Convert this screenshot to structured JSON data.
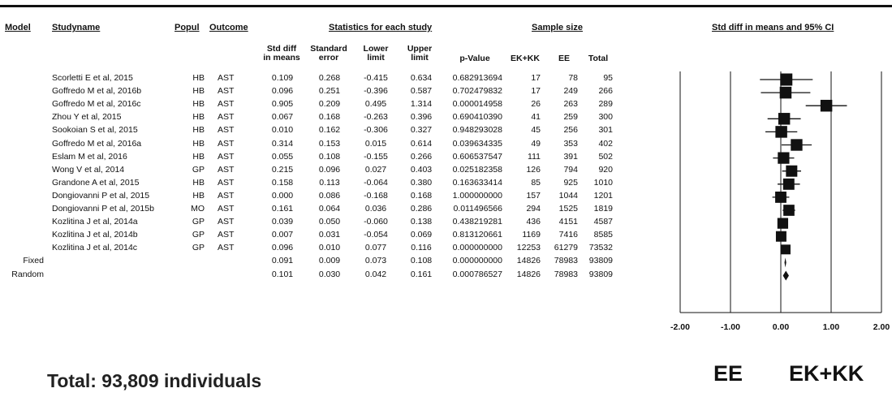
{
  "headers": {
    "model": "Model",
    "study_name": "Studyname",
    "population": "Popul",
    "outcome": "Outcome",
    "statistics_group": "Statistics for each study",
    "sample_group": "Sample size",
    "plot_group": "Std diff in means and 95% CI",
    "std_diff_line1": "Std diff",
    "std_diff_line2": "in means",
    "std_error_line1": "Standard",
    "std_error_line2": "error",
    "lower_line1": "Lower",
    "lower_line2": "limit",
    "upper_line1": "Upper",
    "upper_line2": "limit",
    "p_value": "p-Value",
    "ekkk": "EK+KK",
    "ee": "EE",
    "total": "Total"
  },
  "rows": [
    {
      "model": "",
      "study": "Scorletti E et al, 2015",
      "pop": "HB",
      "outcome": "AST",
      "smd": "0.109",
      "se": "0.268",
      "lower": "-0.415",
      "upper": "0.634",
      "p": "0.682913694",
      "ekkk": "17",
      "ee": "78",
      "total": "95"
    },
    {
      "model": "",
      "study": "Goffredo M et al, 2016b",
      "pop": "HB",
      "outcome": "AST",
      "smd": "0.096",
      "se": "0.251",
      "lower": "-0.396",
      "upper": "0.587",
      "p": "0.702479832",
      "ekkk": "17",
      "ee": "249",
      "total": "266"
    },
    {
      "model": "",
      "study": "Goffredo M et al, 2016c",
      "pop": "HB",
      "outcome": "AST",
      "smd": "0.905",
      "se": "0.209",
      "lower": "0.495",
      "upper": "1.314",
      "p": "0.000014958",
      "ekkk": "26",
      "ee": "263",
      "total": "289"
    },
    {
      "model": "",
      "study": "Zhou Y et al, 2015",
      "pop": "HB",
      "outcome": "AST",
      "smd": "0.067",
      "se": "0.168",
      "lower": "-0.263",
      "upper": "0.396",
      "p": "0.690410390",
      "ekkk": "41",
      "ee": "259",
      "total": "300"
    },
    {
      "model": "",
      "study": "Sookoian S et al, 2015",
      "pop": "HB",
      "outcome": "AST",
      "smd": "0.010",
      "se": "0.162",
      "lower": "-0.306",
      "upper": "0.327",
      "p": "0.948293028",
      "ekkk": "45",
      "ee": "256",
      "total": "301"
    },
    {
      "model": "",
      "study": "Goffredo M et al, 2016a",
      "pop": "HB",
      "outcome": "AST",
      "smd": "0.314",
      "se": "0.153",
      "lower": "0.015",
      "upper": "0.614",
      "p": "0.039634335",
      "ekkk": "49",
      "ee": "353",
      "total": "402"
    },
    {
      "model": "",
      "study": "Eslam M et al, 2016",
      "pop": "HB",
      "outcome": "AST",
      "smd": "0.055",
      "se": "0.108",
      "lower": "-0.155",
      "upper": "0.266",
      "p": "0.606537547",
      "ekkk": "111",
      "ee": "391",
      "total": "502"
    },
    {
      "model": "",
      "study": "Wong V et al, 2014",
      "pop": "GP",
      "outcome": "AST",
      "smd": "0.215",
      "se": "0.096",
      "lower": "0.027",
      "upper": "0.403",
      "p": "0.025182358",
      "ekkk": "126",
      "ee": "794",
      "total": "920"
    },
    {
      "model": "",
      "study": "Grandone A et al, 2015",
      "pop": "HB",
      "outcome": "AST",
      "smd": "0.158",
      "se": "0.113",
      "lower": "-0.064",
      "upper": "0.380",
      "p": "0.163633414",
      "ekkk": "85",
      "ee": "925",
      "total": "1010"
    },
    {
      "model": "",
      "study": "Dongiovanni P et al, 2015",
      "pop": "HB",
      "outcome": "AST",
      "smd": "0.000",
      "se": "0.086",
      "lower": "-0.168",
      "upper": "0.168",
      "p": "1.000000000",
      "ekkk": "157",
      "ee": "1044",
      "total": "1201"
    },
    {
      "model": "",
      "study": "Dongiovanni P et al, 2015b",
      "pop": "MO",
      "outcome": "AST",
      "smd": "0.161",
      "se": "0.064",
      "lower": "0.036",
      "upper": "0.286",
      "p": "0.011496566",
      "ekkk": "294",
      "ee": "1525",
      "total": "1819"
    },
    {
      "model": "",
      "study": "Kozlitina J et al, 2014a",
      "pop": "GP",
      "outcome": "AST",
      "smd": "0.039",
      "se": "0.050",
      "lower": "-0.060",
      "upper": "0.138",
      "p": "0.438219281",
      "ekkk": "436",
      "ee": "4151",
      "total": "4587"
    },
    {
      "model": "",
      "study": "Kozlitina J et al, 2014b",
      "pop": "GP",
      "outcome": "AST",
      "smd": "0.007",
      "se": "0.031",
      "lower": "-0.054",
      "upper": "0.069",
      "p": "0.813120661",
      "ekkk": "1169",
      "ee": "7416",
      "total": "8585"
    },
    {
      "model": "",
      "study": "Kozlitina J et al, 2014c",
      "pop": "GP",
      "outcome": "AST",
      "smd": "0.096",
      "se": "0.010",
      "lower": "0.077",
      "upper": "0.116",
      "p": "0.000000000",
      "ekkk": "12253",
      "ee": "61279",
      "total": "73532"
    },
    {
      "model": "Fixed",
      "study": "",
      "pop": "",
      "outcome": "",
      "smd": "0.091",
      "se": "0.009",
      "lower": "0.073",
      "upper": "0.108",
      "p": "0.000000000",
      "ekkk": "14826",
      "ee": "78983",
      "total": "93809"
    },
    {
      "model": "Random",
      "study": "",
      "pop": "",
      "outcome": "",
      "smd": "0.101",
      "se": "0.030",
      "lower": "0.042",
      "upper": "0.161",
      "p": "0.000786527",
      "ekkk": "14826",
      "ee": "78983",
      "total": "93809"
    }
  ],
  "chart_data": {
    "type": "forest",
    "x_ticks": [
      "-2.00",
      "-1.00",
      "0.00",
      "1.00",
      "2.00"
    ],
    "xlim": [
      -2,
      2
    ],
    "studies": [
      {
        "name": "Scorletti E et al, 2015",
        "est": 0.109,
        "lower": -0.415,
        "upper": 0.634,
        "weight": 95
      },
      {
        "name": "Goffredo M et al, 2016b",
        "est": 0.096,
        "lower": -0.396,
        "upper": 0.587,
        "weight": 266
      },
      {
        "name": "Goffredo M et al, 2016c",
        "est": 0.905,
        "lower": 0.495,
        "upper": 1.314,
        "weight": 289
      },
      {
        "name": "Zhou Y et al, 2015",
        "est": 0.067,
        "lower": -0.263,
        "upper": 0.396,
        "weight": 300
      },
      {
        "name": "Sookoian S et al, 2015",
        "est": 0.01,
        "lower": -0.306,
        "upper": 0.327,
        "weight": 301
      },
      {
        "name": "Goffredo M et al, 2016a",
        "est": 0.314,
        "lower": 0.015,
        "upper": 0.614,
        "weight": 402
      },
      {
        "name": "Eslam M et al, 2016",
        "est": 0.055,
        "lower": -0.155,
        "upper": 0.266,
        "weight": 502
      },
      {
        "name": "Wong V et al, 2014",
        "est": 0.215,
        "lower": 0.027,
        "upper": 0.403,
        "weight": 920
      },
      {
        "name": "Grandone A et al, 2015",
        "est": 0.158,
        "lower": -0.064,
        "upper": 0.38,
        "weight": 1010
      },
      {
        "name": "Dongiovanni P et al, 2015",
        "est": 0.0,
        "lower": -0.168,
        "upper": 0.168,
        "weight": 1201
      },
      {
        "name": "Dongiovanni P et al, 2015b",
        "est": 0.161,
        "lower": 0.036,
        "upper": 0.286,
        "weight": 1819
      },
      {
        "name": "Kozlitina J et al, 2014a",
        "est": 0.039,
        "lower": -0.06,
        "upper": 0.138,
        "weight": 4587
      },
      {
        "name": "Kozlitina J et al, 2014b",
        "est": 0.007,
        "lower": -0.054,
        "upper": 0.069,
        "weight": 8585
      },
      {
        "name": "Kozlitina J et al, 2014c",
        "est": 0.096,
        "lower": 0.077,
        "upper": 0.116,
        "weight": 73532
      }
    ],
    "summaries": [
      {
        "name": "Fixed",
        "est": 0.091,
        "lower": 0.073,
        "upper": 0.108
      },
      {
        "name": "Random",
        "est": 0.101,
        "lower": 0.042,
        "upper": 0.161
      }
    ],
    "grid": false
  },
  "annotations": {
    "total": "Total: 93,809 individuals",
    "left_label": "EE",
    "right_label": "EK+KK"
  }
}
